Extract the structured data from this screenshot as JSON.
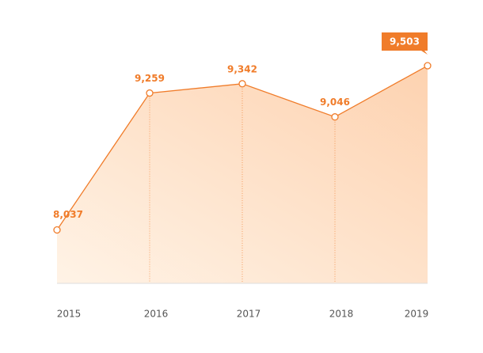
{
  "chart_data": {
    "type": "area",
    "categories": [
      "2015",
      "2016",
      "2017",
      "2018",
      "2019"
    ],
    "values": [
      8037,
      9259,
      9342,
      9046,
      9503
    ],
    "value_labels": [
      "8,037",
      "9,259",
      "9,342",
      "9,046",
      "9,503"
    ],
    "color": "#f07c2a",
    "ylim": [
      7560,
      9800
    ]
  }
}
